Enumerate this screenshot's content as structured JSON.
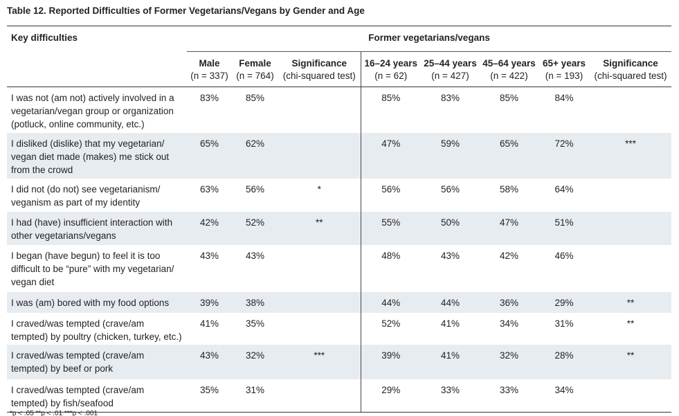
{
  "title": "Table 12. Reported Difficulties of Former Vegetarians/Vegans by Gender and Age",
  "table": {
    "key_header": "Key difficulties",
    "group_header": "Former vegetarians/vegans",
    "columns": [
      {
        "label": "Male",
        "sub": "(n = 337)"
      },
      {
        "label": "Female",
        "sub": "(n = 764)"
      },
      {
        "label": "Significance",
        "sub": "(chi-squared test)"
      },
      {
        "label": "16–24 years",
        "sub": "(n = 62)"
      },
      {
        "label": "25–44 years",
        "sub": "(n = 427)"
      },
      {
        "label": "45–64 years",
        "sub": "(n = 422)"
      },
      {
        "label": "65+ years",
        "sub": "(n = 193)"
      },
      {
        "label": "Significance",
        "sub": "(chi-squared test)"
      }
    ],
    "rows": [
      {
        "difficulty": "I was not (am not) actively involved in a vegetarian/vegan group or organization (potluck, online community, etc.)",
        "cells": [
          "83%",
          "85%",
          null,
          "85%",
          "83%",
          "85%",
          "84%",
          null
        ]
      },
      {
        "difficulty": "I disliked (dislike) that my vegetarian/ vegan diet made (makes) me stick out from the crowd",
        "cells": [
          "65%",
          "62%",
          null,
          "47%",
          "59%",
          "65%",
          "72%",
          "***"
        ]
      },
      {
        "difficulty": "I did not (do not) see vegetarianism/ veganism as part of my identity",
        "cells": [
          "63%",
          "56%",
          "*",
          "56%",
          "56%",
          "58%",
          "64%",
          null
        ]
      },
      {
        "difficulty": "I had (have) insufficient interaction with other vegetarians/vegans",
        "cells": [
          "42%",
          "52%",
          "**",
          "55%",
          "50%",
          "47%",
          "51%",
          null
        ]
      },
      {
        "difficulty": "I began (have begun) to feel it is too difficult to be “pure” with my vegetarian/ vegan diet",
        "cells": [
          "43%",
          "43%",
          null,
          "48%",
          "43%",
          "42%",
          "46%",
          null
        ]
      },
      {
        "difficulty": "I was (am) bored with my food options",
        "cells": [
          "39%",
          "38%",
          null,
          "44%",
          "44%",
          "36%",
          "29%",
          "**"
        ]
      },
      {
        "difficulty": "I craved/was tempted (crave/am tempted) by poultry (chicken, turkey, etc.)",
        "cells": [
          "41%",
          "35%",
          null,
          "52%",
          "41%",
          "34%",
          "31%",
          "**"
        ]
      },
      {
        "difficulty": "I craved/was tempted (crave/am tempted) by beef or pork",
        "cells": [
          "43%",
          "32%",
          "***",
          "39%",
          "41%",
          "32%",
          "28%",
          "**"
        ]
      },
      {
        "difficulty": "I craved/was tempted (crave/am tempted) by fish/seafood",
        "cells": [
          "35%",
          "31%",
          null,
          "29%",
          "33%",
          "33%",
          "34%",
          null
        ]
      }
    ],
    "footnote": "*p < .05 **p < .01 ***p < .001"
  }
}
